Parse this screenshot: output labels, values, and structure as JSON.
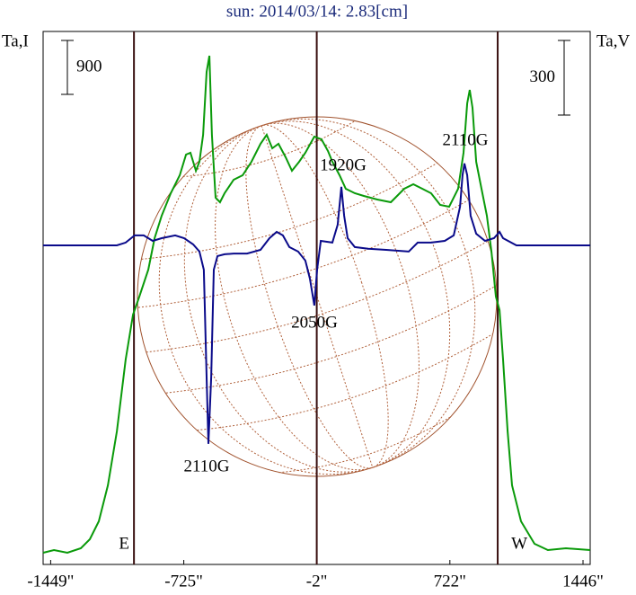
{
  "chart_data": {
    "type": "line",
    "title": "sun: 2014/03/14: 2.83[cm]",
    "y_label": "Ta,I",
    "y2_label": "Ta,V",
    "xlim": [
      -1490,
      1485
    ],
    "xticks": [
      {
        "value": -1449,
        "label": "-1449\""
      },
      {
        "value": -725,
        "label": "-725\""
      },
      {
        "value": -2,
        "label": "-2\""
      },
      {
        "value": 722,
        "label": "722\""
      },
      {
        "value": 1446,
        "label": "1446\""
      }
    ],
    "ylim": [
      -45,
      8850
    ],
    "y2lim": [
      -1283,
      860
    ],
    "scale_bars": [
      {
        "value": 900,
        "label": "900",
        "axis": "y"
      },
      {
        "value": 300,
        "label": "300",
        "axis": "y2"
      }
    ],
    "vlines": [
      {
        "value": -996,
        "label": "E"
      },
      {
        "value": -2
      },
      {
        "value": 982,
        "label": "W"
      }
    ],
    "series": [
      {
        "name": "I",
        "color": "#0a9a0a",
        "axis": "y",
        "x": [
          -1490,
          -1431,
          -1358,
          -1285,
          -1236,
          -1187,
          -1138,
          -1089,
          -1041,
          -1001,
          -967,
          -918,
          -884,
          -845,
          -796,
          -747,
          -713,
          -689,
          -659,
          -640,
          -620,
          -601,
          -586,
          -572,
          -552,
          -528,
          -503,
          -454,
          -405,
          -357,
          -308,
          -274,
          -244,
          -210,
          -171,
          -137,
          -98,
          -64,
          -15,
          24,
          59,
          83,
          122,
          156,
          205,
          254,
          327,
          401,
          474,
          523,
          572,
          620,
          669,
          718,
          767,
          796,
          816,
          830,
          845,
          865,
          894,
          923,
          948,
          972,
          992,
          1011,
          1036,
          1060,
          1109,
          1182,
          1255,
          1353,
          1485
        ],
        "values": [
          150,
          195,
          150,
          225,
          375,
          675,
          1275,
          2175,
          3375,
          4125,
          4425,
          4875,
          5400,
          5775,
          6150,
          6450,
          6795,
          6825,
          6525,
          6675,
          7125,
          8175,
          8445,
          7125,
          6075,
          6000,
          6150,
          6375,
          6450,
          6675,
          6975,
          7125,
          6900,
          6975,
          6750,
          6525,
          6675,
          6825,
          7095,
          7050,
          6855,
          6675,
          6450,
          6225,
          6150,
          6105,
          6045,
          6000,
          6225,
          6300,
          6225,
          6150,
          5955,
          5925,
          6225,
          6825,
          7650,
          7875,
          7575,
          6675,
          6225,
          5775,
          5175,
          4425,
          4200,
          3375,
          2175,
          1275,
          675,
          300,
          195,
          225,
          195
        ]
      },
      {
        "name": "V",
        "color": "#0a0a8a",
        "axis": "y2",
        "x": [
          -1490,
          -1089,
          -1041,
          -992,
          -943,
          -894,
          -845,
          -772,
          -723,
          -674,
          -640,
          -616,
          -601,
          -591,
          -576,
          -562,
          -542,
          -503,
          -454,
          -381,
          -308,
          -259,
          -220,
          -186,
          -151,
          -103,
          -64,
          -39,
          -15,
          0,
          20,
          83,
          112,
          132,
          147,
          166,
          205,
          278,
          376,
          498,
          547,
          620,
          694,
          743,
          777,
          791,
          801,
          816,
          835,
          865,
          913,
          962,
          992,
          1011,
          1084,
          1485
        ],
        "values": [
          0,
          0,
          11,
          40,
          40,
          18,
          29,
          40,
          29,
          4,
          -25,
          -98,
          -531,
          -798,
          -531,
          -98,
          -43,
          -36,
          -33,
          -33,
          -18,
          29,
          54,
          40,
          -7,
          -25,
          -61,
          -134,
          -242,
          -98,
          18,
          11,
          83,
          235,
          119,
          29,
          -7,
          -14,
          -18,
          -25,
          11,
          11,
          18,
          40,
          155,
          282,
          329,
          282,
          119,
          47,
          18,
          29,
          54,
          29,
          0,
          0
        ]
      }
    ],
    "annotations": [
      "2110G",
      "2050G",
      "1920G",
      "2110G"
    ]
  }
}
